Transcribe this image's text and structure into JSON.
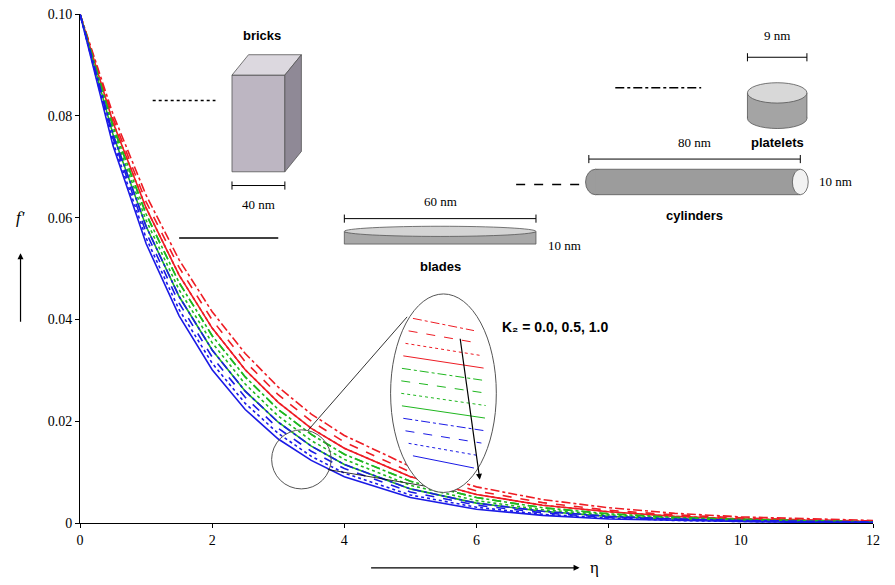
{
  "chart_data": {
    "type": "line",
    "x_label": "η",
    "y_label": "f'",
    "xlim": [
      0,
      12
    ],
    "xticks": [
      0,
      2,
      4,
      6,
      8,
      10,
      12
    ],
    "ylim": [
      0,
      0.1
    ],
    "yticks": [
      0,
      0.02,
      0.04,
      0.06,
      0.08,
      {
        "value": 0.1,
        "label": "0.10"
      }
    ],
    "grid": false,
    "annotation": "K₂ = 0.0, 0.5, 1.0",
    "shape_key": [
      {
        "name": "bricks",
        "dims": [
          "40 nm"
        ]
      },
      {
        "name": "platelets",
        "dims": [
          "9 nm"
        ]
      },
      {
        "name": "cylinders",
        "dims": [
          "80 nm",
          "10 nm"
        ]
      },
      {
        "name": "blades",
        "dims": [
          "60 nm",
          "10 nm"
        ]
      }
    ],
    "x": [
      0,
      0.5,
      1,
      1.5,
      2,
      2.5,
      3,
      3.5,
      4,
      5,
      6,
      7,
      8,
      9,
      10,
      11,
      12
    ],
    "series": [
      {
        "name": "platelets",
        "color": "#ee1c24",
        "line_style": "dashdot",
        "values": [
          0.1,
          0.0803,
          0.0644,
          0.0517,
          0.0415,
          0.0333,
          0.0267,
          0.0214,
          0.0172,
          0.0111,
          0.0071,
          0.0046,
          0.003,
          0.0019,
          0.0012,
          0.0008,
          0.0005
        ]
      },
      {
        "name": "cylinders",
        "color": "#ee1c24",
        "line_style": "dash",
        "values": [
          0.1,
          0.0795,
          0.0631,
          0.0502,
          0.0399,
          0.0317,
          0.0252,
          0.02,
          0.0159,
          0.01,
          0.0063,
          0.004,
          0.0025,
          0.0016,
          0.001,
          0.0006,
          0.0004
        ]
      },
      {
        "name": "bricks",
        "color": "#ee1c24",
        "line_style": "dot",
        "values": [
          0.1,
          0.0787,
          0.0619,
          0.0487,
          0.0383,
          0.0301,
          0.0237,
          0.0186,
          0.0147,
          0.0091,
          0.0056,
          0.0035,
          0.0022,
          0.0013,
          0.0008,
          0.0005,
          0.0003
        ]
      },
      {
        "name": "blades",
        "color": "#ee1c24",
        "line_style": "solid",
        "values": [
          0.1,
          0.0787,
          0.0619,
          0.0487,
          0.0383,
          0.0301,
          0.0237,
          0.0186,
          0.0147,
          0.0091,
          0.0056,
          0.0035,
          0.0022,
          0.0013,
          0.0008,
          0.0005,
          0.0003
        ]
      },
      {
        "name": "platelets",
        "color": "#1fb71f",
        "line_style": "dashdot",
        "values": [
          0.1,
          0.0779,
          0.0607,
          0.0472,
          0.0368,
          0.0287,
          0.0223,
          0.0174,
          0.0135,
          0.0082,
          0.005,
          0.003,
          0.0018,
          0.0011,
          0.0007,
          0.0004,
          0.0002
        ]
      },
      {
        "name": "cylinders",
        "color": "#1fb71f",
        "line_style": "dash",
        "values": [
          0.1,
          0.0779,
          0.0607,
          0.0472,
          0.0368,
          0.0287,
          0.0223,
          0.0174,
          0.0135,
          0.0082,
          0.005,
          0.003,
          0.0018,
          0.0011,
          0.0007,
          0.0004,
          0.0002
        ]
      },
      {
        "name": "bricks",
        "color": "#1fb71f",
        "line_style": "dot",
        "values": [
          0.1,
          0.0771,
          0.0595,
          0.0458,
          0.0354,
          0.0273,
          0.021,
          0.0162,
          0.0125,
          0.0074,
          0.0044,
          0.0026,
          0.0016,
          0.0009,
          0.0006,
          0.0003,
          0.0002
        ]
      },
      {
        "name": "blades",
        "color": "#1fb71f",
        "line_style": "solid",
        "values": [
          0.1,
          0.0763,
          0.0583,
          0.0445,
          0.034,
          0.0259,
          0.0198,
          0.0151,
          0.0115,
          0.0067,
          0.0039,
          0.0023,
          0.0013,
          0.0008,
          0.0005,
          0.0003,
          0.0002
        ]
      },
      {
        "name": "platelets",
        "color": "#1a1ae6",
        "line_style": "dashdot",
        "values": [
          0.1,
          0.0763,
          0.0583,
          0.0445,
          0.034,
          0.0259,
          0.0198,
          0.0151,
          0.0115,
          0.0067,
          0.0039,
          0.0023,
          0.0013,
          0.0008,
          0.0005,
          0.0003,
          0.0002
        ]
      },
      {
        "name": "cylinders",
        "color": "#1a1ae6",
        "line_style": "dash",
        "values": [
          0.1,
          0.0756,
          0.0571,
          0.0432,
          0.0326,
          0.0247,
          0.0186,
          0.0141,
          0.0107,
          0.0061,
          0.0035,
          0.002,
          0.0011,
          0.0007,
          0.0004,
          0.0002,
          0.0001
        ]
      },
      {
        "name": "bricks",
        "color": "#1a1ae6",
        "line_style": "dot",
        "values": [
          0.1,
          0.0748,
          0.056,
          0.0419,
          0.0314,
          0.0235,
          0.0176,
          0.0131,
          0.0098,
          0.0055,
          0.0031,
          0.0017,
          0.001,
          0.0005,
          0.0003,
          0.0002,
          0.0001
        ]
      },
      {
        "name": "blades",
        "color": "#1a1ae6",
        "line_style": "solid",
        "values": [
          0.1,
          0.0741,
          0.0549,
          0.0407,
          0.0301,
          0.0223,
          0.0165,
          0.0123,
          0.0091,
          0.005,
          0.0027,
          0.0015,
          0.0008,
          0.0005,
          0.0003,
          0.0001,
          0.0001
        ]
      }
    ]
  }
}
